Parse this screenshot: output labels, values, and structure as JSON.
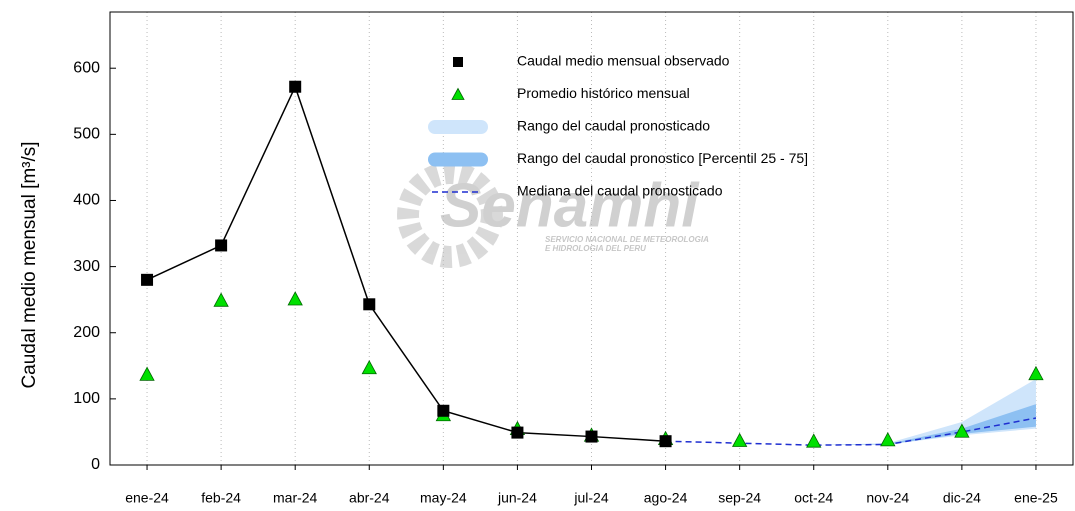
{
  "chart_data": {
    "type": "line",
    "ylabel": "Caudal medio mensual  [m³/s]",
    "watermark": "Senamhi",
    "watermark_sub": [
      "SERVICIO NACIONAL DE METEOROLOGIA",
      "E HIDROLOGIA DEL PERU"
    ],
    "categories": [
      "ene-24",
      "feb-24",
      "mar-24",
      "abr-24",
      "may-24",
      "jun-24",
      "jul-24",
      "ago-24",
      "sep-24",
      "oct-24",
      "nov-24",
      "dic-24",
      "ene-25"
    ],
    "ylim": [
      0,
      685
    ],
    "yticks": [
      0,
      100,
      200,
      300,
      400,
      500,
      600
    ],
    "grid": true,
    "bands": [
      {
        "name": "Rango del caudal pronosticado",
        "color": "#cfe5fb",
        "low": [
          null,
          null,
          null,
          null,
          null,
          null,
          null,
          36,
          33,
          30,
          31,
          45,
          55
        ],
        "high": [
          null,
          null,
          null,
          null,
          null,
          null,
          null,
          36,
          33,
          30,
          33,
          65,
          130
        ]
      },
      {
        "name": "Rango del caudal pronostico [Percentil 25 - 75]",
        "color": "#8dc0f2",
        "low": [
          null,
          null,
          null,
          null,
          null,
          null,
          null,
          36,
          33,
          30,
          31,
          47,
          58
        ],
        "high": [
          null,
          null,
          null,
          null,
          null,
          null,
          null,
          36,
          33,
          30,
          32,
          55,
          92
        ]
      }
    ],
    "series": [
      {
        "name": "Caudal medio mensual observado",
        "color": "#000000",
        "marker": "square",
        "values": [
          280,
          332,
          572,
          243,
          82,
          49,
          43,
          36,
          null,
          null,
          null,
          null,
          null
        ]
      },
      {
        "name": "Promedio histórico mensual",
        "color": "#00e000",
        "marker": "triangle",
        "values": [
          137,
          249,
          251,
          147,
          76,
          55,
          45,
          40,
          37,
          36,
          38,
          51,
          138
        ]
      },
      {
        "name": "Mediana del caudal pronosticado",
        "color": "#1f2fd0",
        "marker": "dash",
        "values": [
          null,
          null,
          null,
          null,
          null,
          null,
          null,
          36,
          33,
          30,
          31,
          50,
          71
        ]
      }
    ]
  }
}
